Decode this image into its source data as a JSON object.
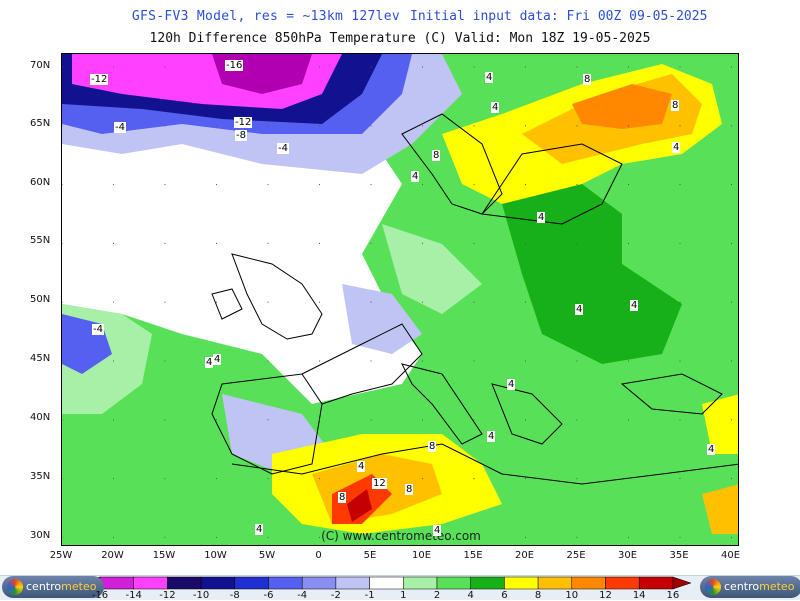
{
  "header": {
    "line1": "GFS-FV3 Model, res = ~13km 127lev",
    "line1b": "Initial input data: Fri 00Z 09-05-2025",
    "line2": "120h Difference 850hPa Temperature (C)  Valid: Mon 18Z 19-05-2025"
  },
  "map": {
    "credit": "(C) www.centrometeo.com",
    "lat_ticks": [
      "70N",
      "65N",
      "60N",
      "55N",
      "50N",
      "45N",
      "40N",
      "35N",
      "30N"
    ],
    "lon_ticks": [
      "25W",
      "20W",
      "15W",
      "10W",
      "5W",
      "0",
      "5E",
      "10E",
      "15E",
      "20E",
      "25E",
      "30E",
      "35E",
      "40E"
    ],
    "contour_labels": [
      {
        "text": "-12"
      },
      {
        "text": "-16"
      },
      {
        "text": "-12"
      },
      {
        "text": "-4"
      },
      {
        "text": "-8"
      },
      {
        "text": "-4"
      },
      {
        "text": "-4"
      },
      {
        "text": "4"
      },
      {
        "text": "4"
      },
      {
        "text": "8"
      },
      {
        "text": "8"
      },
      {
        "text": "4"
      },
      {
        "text": "8"
      },
      {
        "text": "4"
      },
      {
        "text": "4"
      },
      {
        "text": "4"
      },
      {
        "text": "4"
      },
      {
        "text": "4"
      },
      {
        "text": "4"
      },
      {
        "text": "4"
      },
      {
        "text": "8"
      },
      {
        "text": "4"
      },
      {
        "text": "8"
      },
      {
        "text": "12"
      },
      {
        "text": "8"
      },
      {
        "text": "4"
      },
      {
        "text": "4"
      },
      {
        "text": "4"
      },
      {
        "text": "4"
      }
    ]
  },
  "legend": {
    "values": [
      "-16",
      "-14",
      "-12",
      "-10",
      "-8",
      "-6",
      "-4",
      "-2",
      "-1",
      "1",
      "2",
      "4",
      "6",
      "8",
      "10",
      "12",
      "14",
      "16"
    ],
    "colors": [
      "#b000b0",
      "#d020d8",
      "#ff40ff",
      "#1a0a6a",
      "#121290",
      "#2030d0",
      "#5560f0",
      "#8a8ef0",
      "#c0c4f4",
      "#ffffff",
      "#a8f0a8",
      "#58e058",
      "#18b018",
      "#ffff00",
      "#ffc000",
      "#ff8800",
      "#ff3a00",
      "#c40000",
      "#a00000"
    ],
    "logo_left": "centro",
    "logo_left_accent": "meteo",
    "logo_right": "centro",
    "logo_right_accent": "meteo"
  }
}
